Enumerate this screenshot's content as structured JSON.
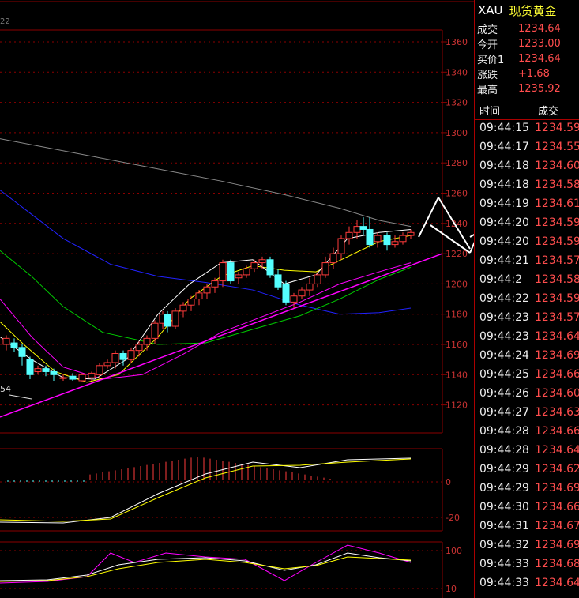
{
  "chart": {
    "corner_label": "22",
    "main_axis_ticks": [
      "1360",
      "1340",
      "1320",
      "1300",
      "1280",
      "1260",
      "1240",
      "1220",
      "1200",
      "1180",
      "1160",
      "1140",
      "1120"
    ],
    "low_marker": "54",
    "macd_ticks": [
      "0",
      "-20"
    ],
    "kdj_ticks": [
      "100",
      "10"
    ],
    "colors": {
      "up": "#ff3b3b",
      "down": "#54ffff",
      "grid": "#8b0000",
      "ma5": "#ffffff",
      "ma10": "#ffff00",
      "ma20": "#ff00ff",
      "ma30": "#00cc00",
      "ma60": "#2222ff",
      "ma120": "#888888",
      "trend": "#ff00ff",
      "arrow": "#ffffff"
    }
  },
  "quote": {
    "symbol": "XAU",
    "name": "现货黄金",
    "rows": [
      {
        "label": "成交",
        "value": "1234.64"
      },
      {
        "label": "今开",
        "value": "1233.00"
      },
      {
        "label": "买价1",
        "value": "1234.64"
      },
      {
        "label": "涨跌",
        "value": "+1.68"
      },
      {
        "label": "最高",
        "value": "1235.92"
      }
    ],
    "ticks_header": {
      "time": "时间",
      "price": "成交"
    },
    "ticks": [
      {
        "time": "09:44:15",
        "price": "1234.59"
      },
      {
        "time": "09:44:17",
        "price": "1234.55"
      },
      {
        "time": "09:44:18",
        "price": "1234.60"
      },
      {
        "time": "09:44:18",
        "price": "1234.58"
      },
      {
        "time": "09:44:19",
        "price": "1234.61"
      },
      {
        "time": "09:44:20",
        "price": "1234.59"
      },
      {
        "time": "09:44:20",
        "price": "1234.59"
      },
      {
        "time": "09:44:21",
        "price": "1234.57"
      },
      {
        "time": "09:44:2",
        "price": "1234.58"
      },
      {
        "time": "09:44:22",
        "price": "1234.59"
      },
      {
        "time": "09:44:23",
        "price": "1234.57"
      },
      {
        "time": "09:44:23",
        "price": "1234.64"
      },
      {
        "time": "09:44:24",
        "price": "1234.69"
      },
      {
        "time": "09:44:25",
        "price": "1234.66"
      },
      {
        "time": "09:44:26",
        "price": "1234.60"
      },
      {
        "time": "09:44:27",
        "price": "1234.63"
      },
      {
        "time": "09:44:28",
        "price": "1234.66"
      },
      {
        "time": "09:44:28",
        "price": "1234.64"
      },
      {
        "time": "09:44:29",
        "price": "1234.62"
      },
      {
        "time": "09:44:29",
        "price": "1234.69"
      },
      {
        "time": "09:44:30",
        "price": "1234.66"
      },
      {
        "time": "09:44:31",
        "price": "1234.67"
      },
      {
        "time": "09:44:32",
        "price": "1234.69"
      },
      {
        "time": "09:44:33",
        "price": "1234.68"
      },
      {
        "time": "09:44:33",
        "price": "1234.64"
      }
    ]
  }
}
